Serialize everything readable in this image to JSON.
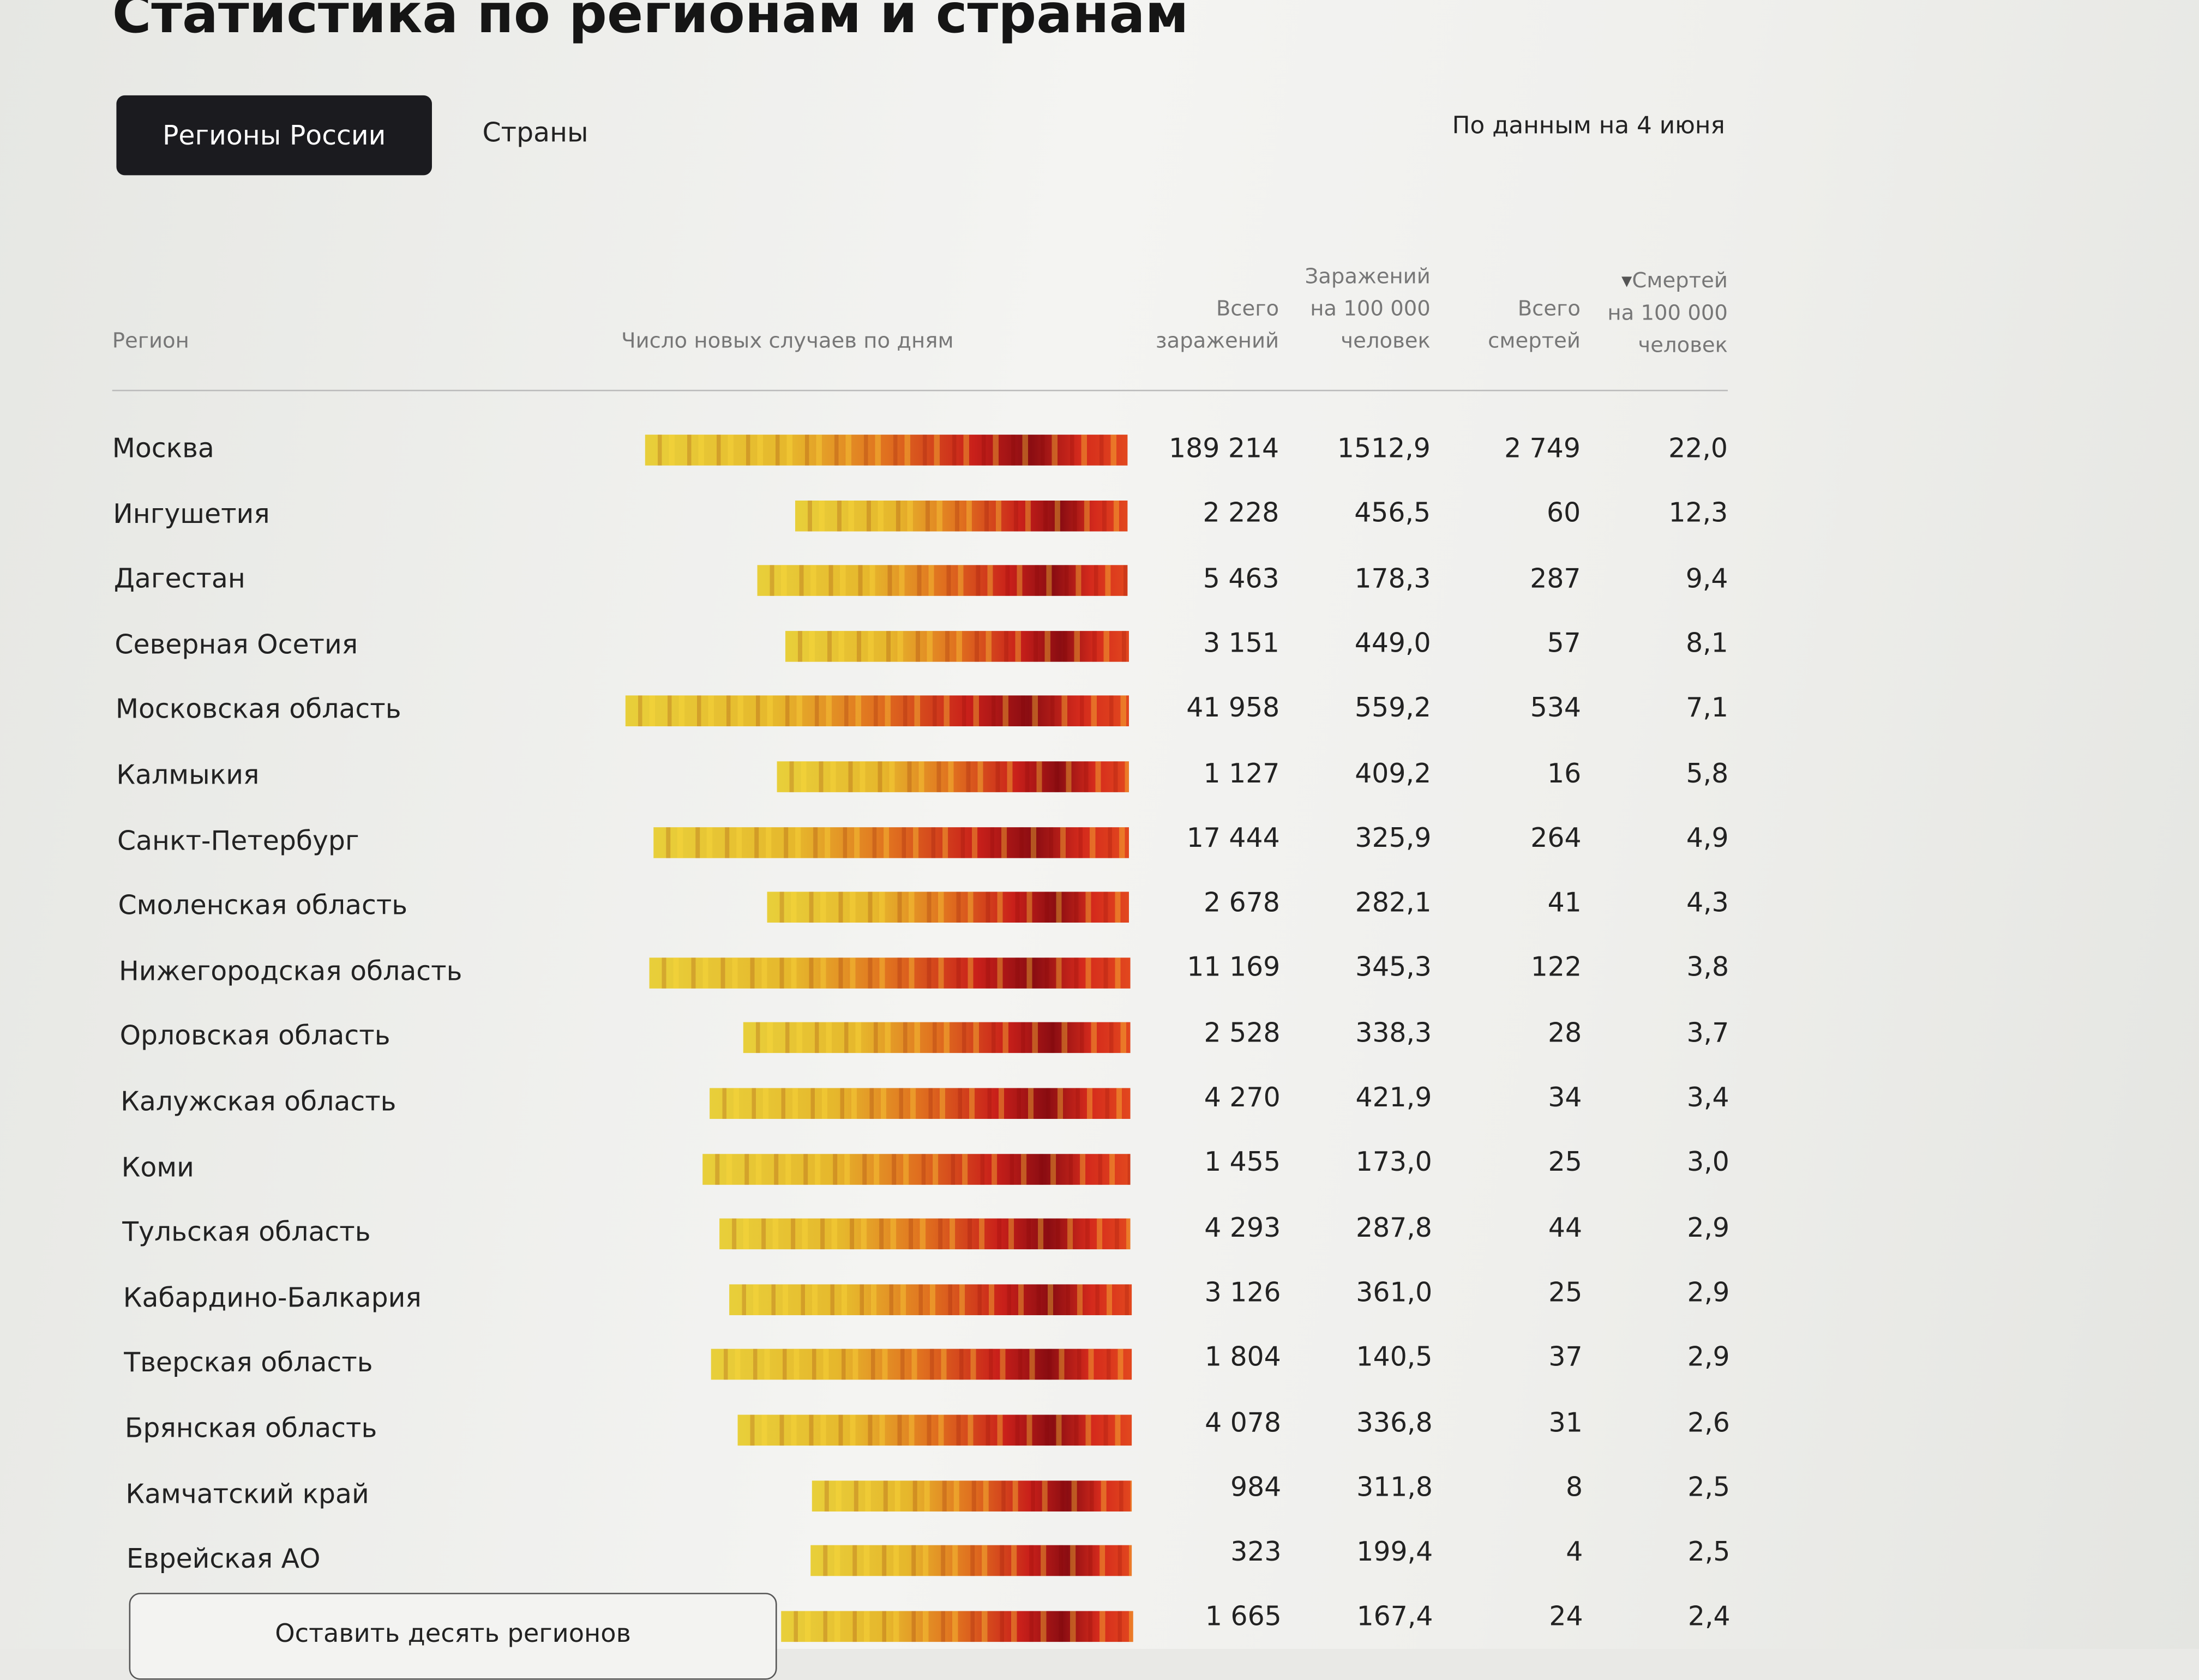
{
  "header": {
    "title": "Статистика по регионам и странам",
    "tabs": [
      "Регионы России",
      "Страны"
    ],
    "date_note": "По данным на 4 июня"
  },
  "table": {
    "columns": [
      "Регион",
      "Число новых случаев по дням",
      "Всего\nзаражений",
      "Заражений\nна 100 000\nчеловек",
      "Всего\nсмертей",
      "Смертей\nна 100 000\nчеловек"
    ],
    "rows": [
      [
        "Москва",
        "189 214",
        "1512,9",
        "2 749",
        "22,0"
      ],
      [
        "Ингушетия",
        "2 228",
        "456,5",
        "60",
        "12,3"
      ],
      [
        "Дагестан",
        "5 463",
        "178,3",
        "287",
        "9,4"
      ],
      [
        "Северная Осетия",
        "3 151",
        "449,0",
        "57",
        "8,1"
      ],
      [
        "Московская область",
        "41 958",
        "559,2",
        "534",
        "7,1"
      ],
      [
        "Калмыкия",
        "1 127",
        "409,2",
        "16",
        "5,8"
      ],
      [
        "Санкт-Петербург",
        "17 444",
        "325,9",
        "264",
        "4,9"
      ],
      [
        "Смоленская область",
        "2 678",
        "282,1",
        "41",
        "4,3"
      ],
      [
        "Нижегородская область",
        "11 169",
        "345,3",
        "122",
        "3,8"
      ],
      [
        "Орловская область",
        "2 528",
        "338,3",
        "28",
        "3,7"
      ],
      [
        "Калужская область",
        "4 270",
        "421,9",
        "34",
        "3,4"
      ],
      [
        "Коми",
        "1 455",
        "173,0",
        "25",
        "3,0"
      ],
      [
        "Тульская область",
        "4 293",
        "287,8",
        "44",
        "2,9"
      ],
      [
        "Кабардино-Балкария",
        "3 126",
        "361,0",
        "25",
        "2,9"
      ],
      [
        "Тверская область",
        "1 804",
        "140,5",
        "37",
        "2,9"
      ],
      [
        "Брянская область",
        "4 078",
        "336,8",
        "31",
        "2,6"
      ],
      [
        "Камчатский край",
        "984",
        "311,8",
        "8",
        "2,5"
      ],
      [
        "Еврейская АО",
        "323",
        "199,4",
        "4",
        "2,5"
      ],
      [
        null,
        "1 665",
        "167,4",
        "24",
        "2,4"
      ]
    ],
    "collapse_button": "Оставить десять регионов"
  }
}
